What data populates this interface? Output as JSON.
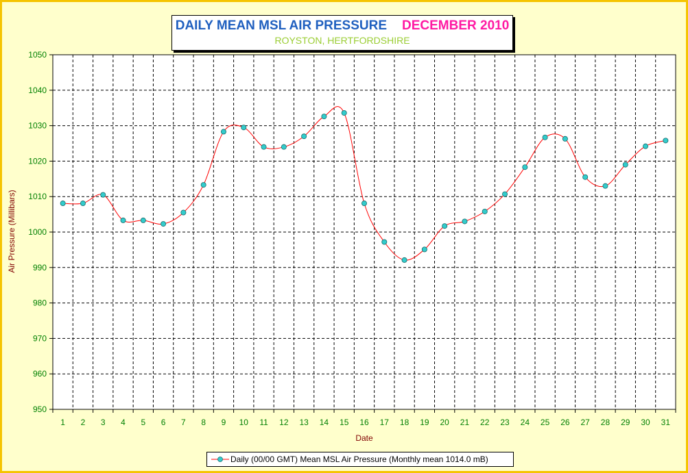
{
  "title": {
    "main": "DAILY MEAN MSL AIR PRESSURE",
    "month": "DECEMBER 2010",
    "subtitle": "ROYSTON, HERTFORDSHIRE"
  },
  "colors": {
    "frame_border": "#f5c400",
    "frame_background": "#ffffcc",
    "title_main": "#1f5fbf",
    "title_month": "#ff1aa3",
    "subtitle": "#9acd32",
    "axis_text": "#008000",
    "axis_title": "#800000",
    "series_line": "#ff0000",
    "marker_fill": "#33cccc"
  },
  "chart_data": {
    "type": "line",
    "title": "DAILY MEAN MSL AIR PRESSURE  DECEMBER 2010",
    "subtitle": "ROYSTON, HERTFORDSHIRE",
    "xlabel": "Date",
    "ylabel": "Air Pressure (Millibars)",
    "ylim": [
      950,
      1050
    ],
    "yticks": [
      950,
      960,
      970,
      980,
      990,
      1000,
      1010,
      1020,
      1030,
      1040,
      1050
    ],
    "categories": [
      "1",
      "2",
      "3",
      "4",
      "5",
      "6",
      "7",
      "8",
      "9",
      "10",
      "11",
      "12",
      "13",
      "14",
      "15",
      "16",
      "17",
      "18",
      "19",
      "20",
      "21",
      "22",
      "23",
      "24",
      "25",
      "26",
      "27",
      "28",
      "29",
      "30",
      "31"
    ],
    "grid": true,
    "line_style": "smoothed",
    "marker": "circle",
    "legend_position": "bottom",
    "series": [
      {
        "name": "Daily (00/00 GMT) Mean MSL Air Pressure (Monthly mean 1014.0 mB)",
        "values": [
          1008.1,
          1008.1,
          1010.5,
          1003.3,
          1003.3,
          1002.3,
          1005.5,
          1013.3,
          1028.3,
          1029.5,
          1024.0,
          1024.0,
          1027.0,
          1032.6,
          1033.6,
          1008.1,
          997.2,
          992.1,
          995.1,
          1001.7,
          1003.0,
          1005.8,
          1010.7,
          1018.3,
          1026.7,
          1026.3,
          1015.5,
          1013.0,
          1019.0,
          1024.2,
          1025.8
        ]
      }
    ]
  }
}
